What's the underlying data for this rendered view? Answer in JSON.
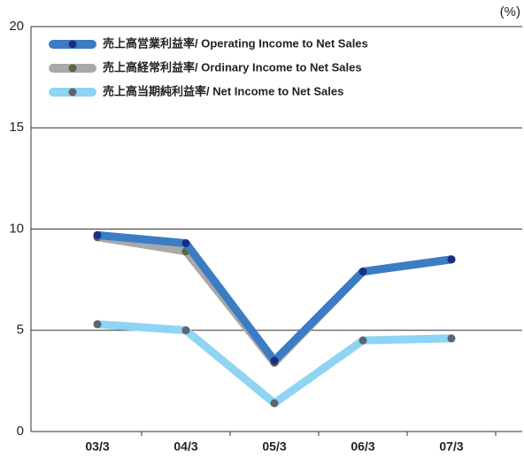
{
  "chart_data": {
    "type": "line",
    "unit_label": "(%)",
    "categories": [
      "03/3",
      "04/3",
      "05/3",
      "06/3",
      "07/3"
    ],
    "series": [
      {
        "name": "売上高営業利益率/ Operating Income to Net Sales",
        "color": "#3b7dc4",
        "marker_color": "#1c2d82",
        "values": [
          9.7,
          9.3,
          3.5,
          7.9,
          8.5
        ]
      },
      {
        "name": "売上高経常利益率/ Ordinary Income to Net Sales",
        "color": "#a9a9a9",
        "marker_color": "#5d6640",
        "values": [
          9.6,
          8.9,
          3.4,
          7.9,
          8.5
        ]
      },
      {
        "name": "売上高当期純利益率/ Net Income to Net Sales",
        "color": "#8fd4f2",
        "marker_color": "#5c6470",
        "values": [
          5.3,
          5.0,
          1.4,
          4.5,
          4.6
        ]
      }
    ],
    "ylim": [
      0,
      20
    ],
    "yticks": [
      0,
      5,
      10,
      15,
      20
    ],
    "grid": true
  }
}
